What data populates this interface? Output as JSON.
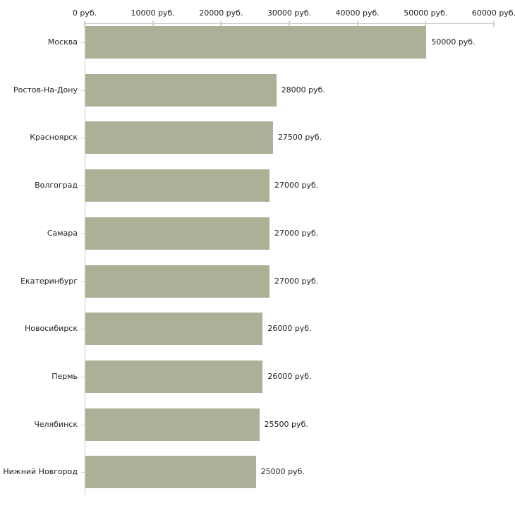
{
  "chart_data": {
    "type": "bar",
    "orientation": "horizontal",
    "title": "",
    "xlabel": "",
    "ylabel": "",
    "categories": [
      "Москва",
      "Ростов-На-Дону",
      "Красноярск",
      "Волгоград",
      "Самара",
      "Екатеринбург",
      "Новосибирск",
      "Пермь",
      "Челябинск",
      "Нижний Новгород"
    ],
    "values": [
      50000,
      28000,
      27500,
      27000,
      27000,
      27000,
      26000,
      26000,
      25500,
      25000
    ],
    "value_labels": [
      "50000 руб.",
      "28000 руб.",
      "27500 руб.",
      "27000 руб.",
      "27000 руб.",
      "27000 руб.",
      "26000 руб.",
      "26000 руб.",
      "25500 руб.",
      "25000 руб."
    ],
    "x_axis": {
      "position": "top",
      "min": 0,
      "max": 60000,
      "ticks": [
        0,
        10000,
        20000,
        30000,
        40000,
        50000,
        60000
      ],
      "tick_labels": [
        "0 руб.",
        "10000 руб.",
        "20000 руб.",
        "30000 руб.",
        "40000 руб.",
        "50000 руб.",
        "60000 руб."
      ]
    },
    "grid": false,
    "legend": false,
    "colors": {
      "bar": "#abb097",
      "axis_line": "#c8c8c8",
      "tick": "#d2d2b8",
      "text": "#222222",
      "background": "#ffffff"
    }
  }
}
